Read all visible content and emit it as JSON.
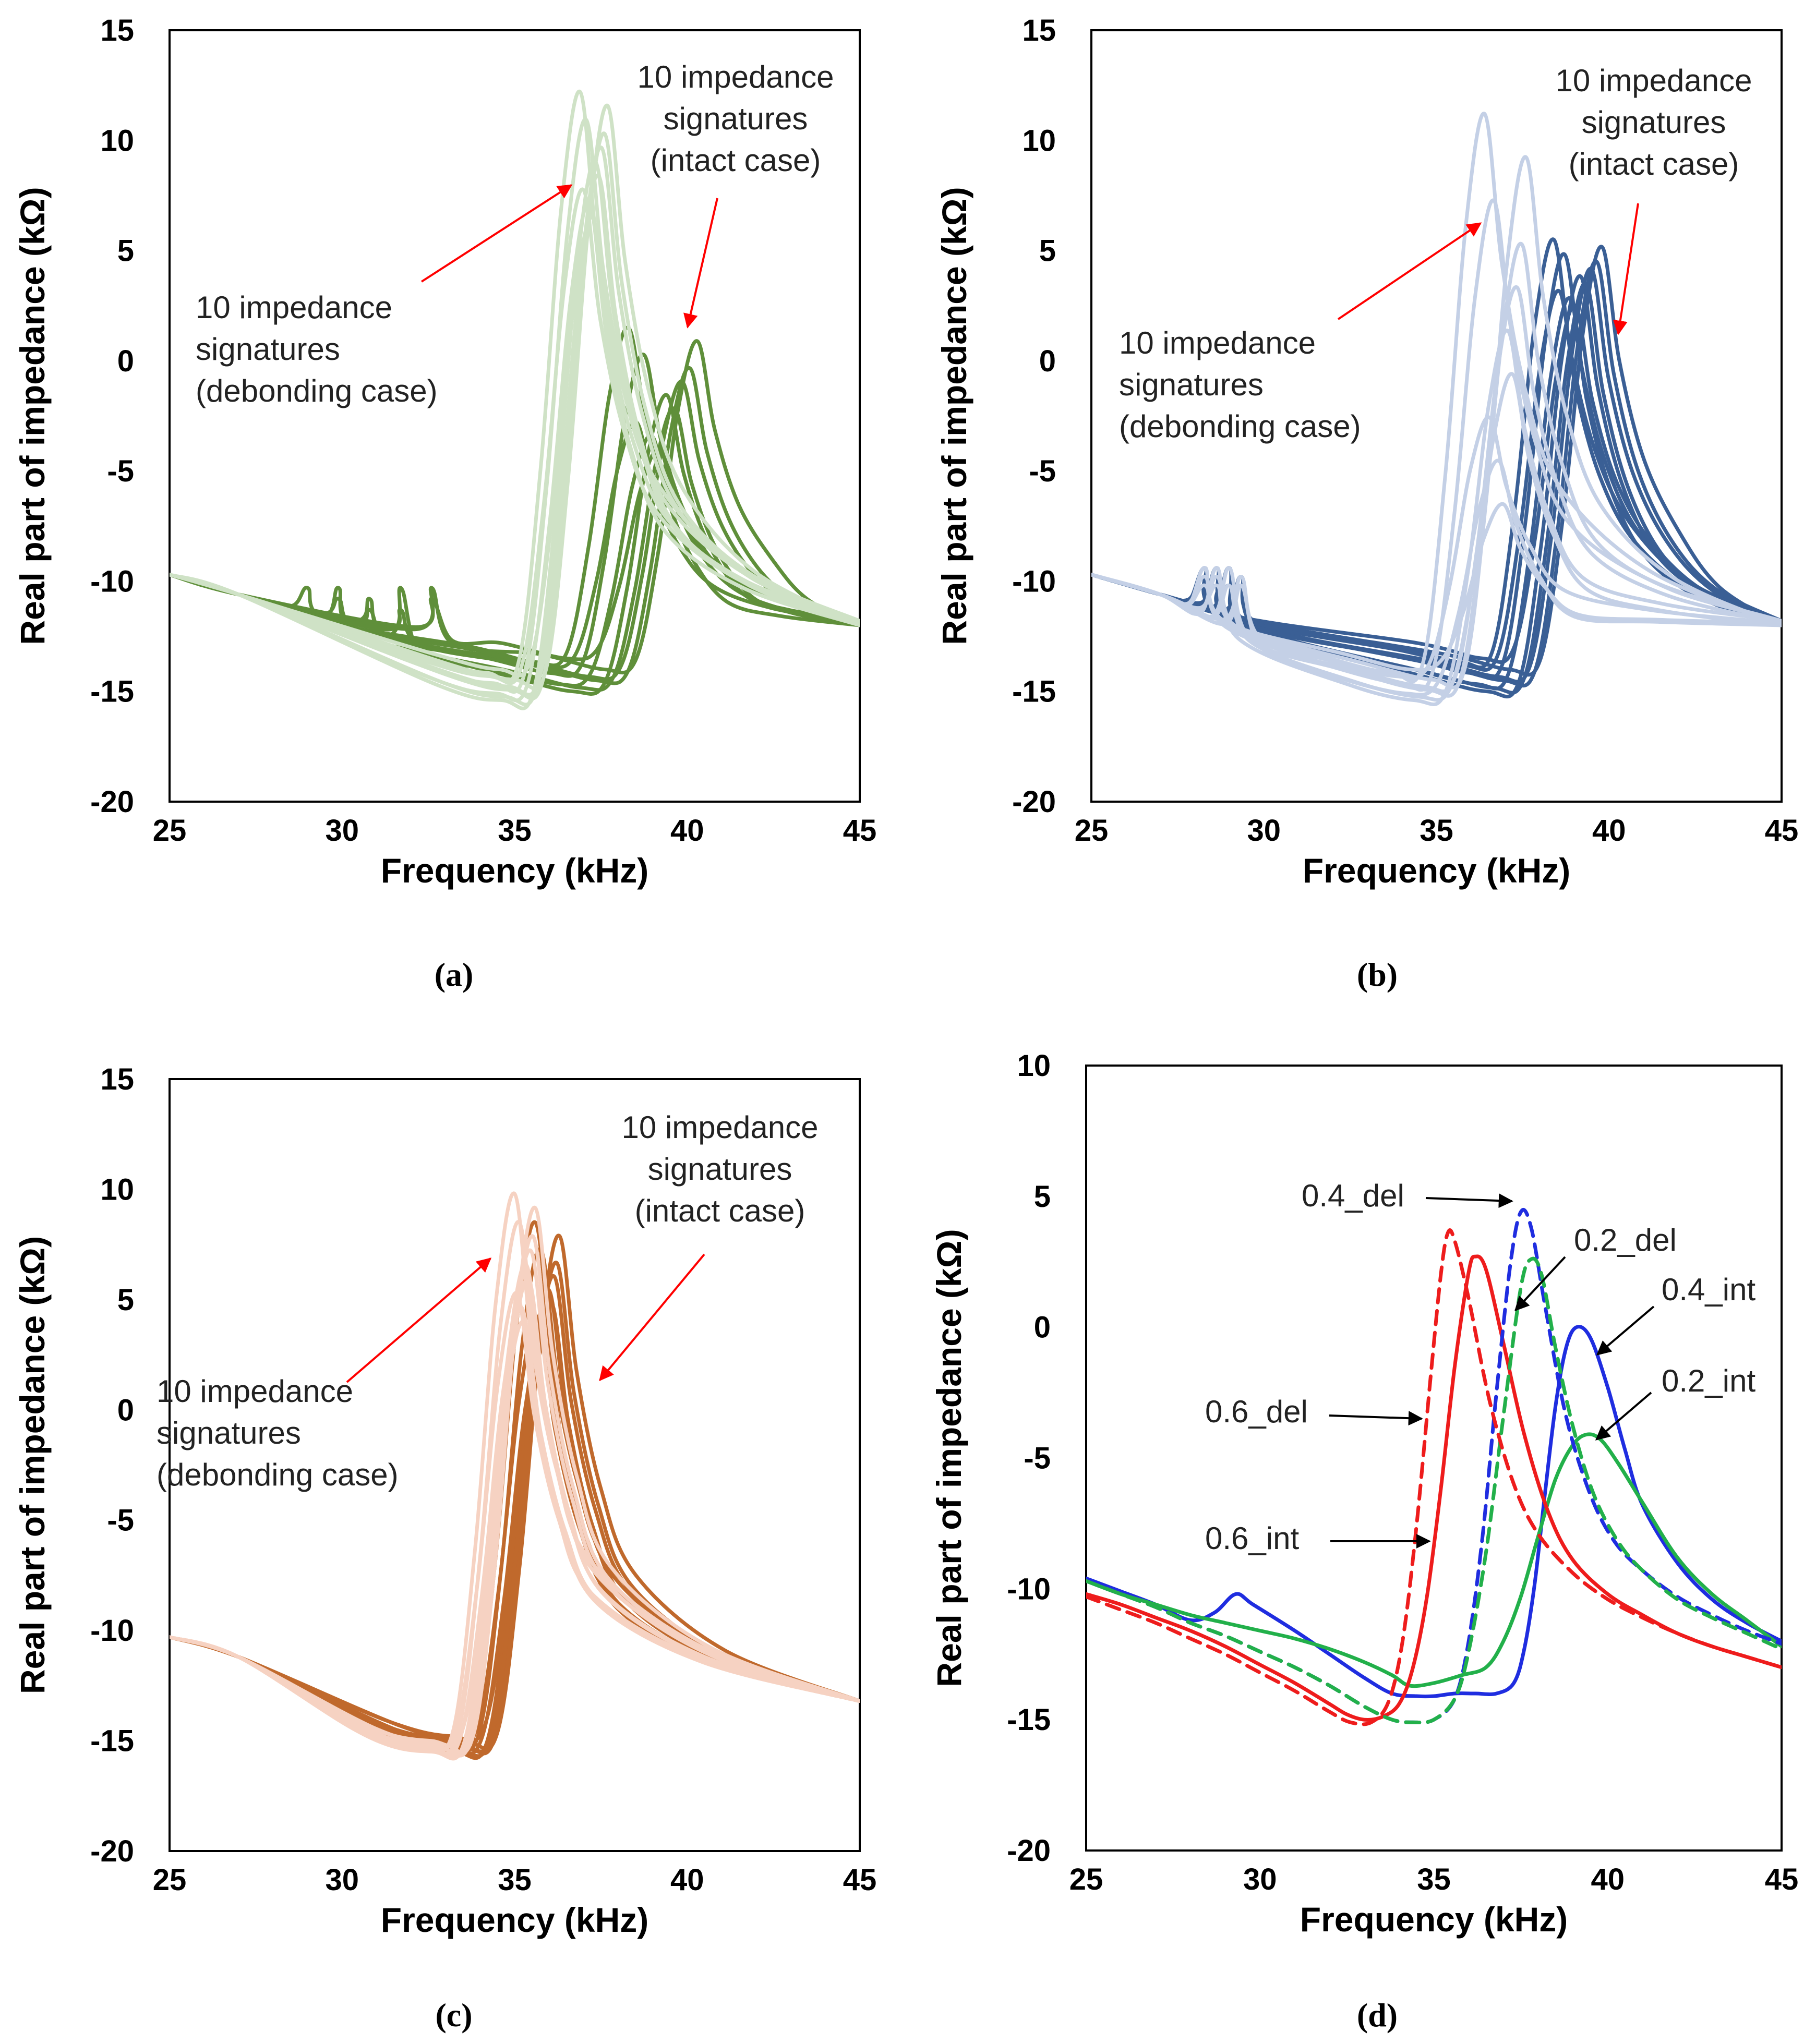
{
  "chart_data": [
    {
      "panel": "a",
      "caption": "(a)",
      "type": "line",
      "title": "",
      "xlabel": "Frequency (kHz)",
      "ylabel": "Real part of impedance (kΩ)",
      "xlim": [
        25,
        45
      ],
      "ylim": [
        -20,
        15
      ],
      "xticks": [
        "25",
        "30",
        "35",
        "40",
        "45"
      ],
      "yticks": [
        "15",
        "10",
        "5",
        "0",
        "-5",
        "-10",
        "-15",
        "-20"
      ],
      "colors": {
        "intact": "#5f8f3a",
        "debonding": "#cfe2c6",
        "arrow": "#ff0000"
      },
      "annotations": [
        {
          "lines": [
            "10 impedance",
            "signatures",
            "(intact case)"
          ]
        },
        {
          "lines": [
            "10 impedance",
            "signatures",
            "(debonding case)"
          ]
        }
      ],
      "series": [
        {
          "name": "intact",
          "count": 10,
          "peak_freq_range": [
            38.3,
            40.3
          ],
          "peak_value_range": [
            -4,
            1.5
          ],
          "min_value_range": [
            -15,
            -13.5
          ]
        },
        {
          "name": "debonding",
          "count": 10,
          "peak_freq_range": [
            36.9,
            37.7
          ],
          "peak_value_range": [
            6.5,
            12.2
          ],
          "min_value_range": [
            -15.4,
            -14
          ]
        }
      ]
    },
    {
      "panel": "b",
      "caption": "(b)",
      "type": "line",
      "title": "",
      "xlabel": "Frequency (kHz)",
      "ylabel": "Real part of impedance (kΩ)",
      "xlim": [
        25,
        45
      ],
      "ylim": [
        -20,
        15
      ],
      "xticks": [
        "25",
        "30",
        "35",
        "40",
        "45"
      ],
      "yticks": [
        "15",
        "10",
        "5",
        "0",
        "-5",
        "-10",
        "-15",
        "-20"
      ],
      "colors": {
        "intact": "#3a5f95",
        "debonding": "#c4d0e6",
        "arrow": "#ff0000"
      },
      "annotations": [
        {
          "lines": [
            "10 impedance",
            "signatures",
            "(intact case)"
          ]
        },
        {
          "lines": [
            "10 impedance",
            "signatures",
            "(debonding case)"
          ]
        }
      ],
      "series": [
        {
          "name": "intact",
          "count": 10,
          "peak_freq_range": [
            38.4,
            39.8
          ],
          "peak_value_range": [
            2.5,
            5.5
          ],
          "min_value_range": [
            -15,
            -13.5
          ]
        },
        {
          "name": "debonding",
          "count": 10,
          "peak_freq_range": [
            36.4,
            37.6
          ],
          "peak_value_range": [
            -6.5,
            11.2
          ],
          "min_value_range": [
            -15.4,
            -14
          ]
        }
      ]
    },
    {
      "panel": "c",
      "caption": "(c)",
      "type": "line",
      "title": "",
      "xlabel": "Frequency (kHz)",
      "ylabel": "Real part of impedance (kΩ)",
      "xlim": [
        25,
        45
      ],
      "ylim": [
        -20,
        15
      ],
      "xticks": [
        "25",
        "30",
        "35",
        "40",
        "45"
      ],
      "yticks": [
        "15",
        "10",
        "5",
        "0",
        "-5",
        "-10",
        "-15",
        "-20"
      ],
      "colors": {
        "intact": "#c0692c",
        "debonding": "#f6d2c2",
        "arrow": "#ff0000"
      },
      "annotations": [
        {
          "lines": [
            "10 impedance",
            "signatures",
            "(intact case)"
          ]
        },
        {
          "lines": [
            "10 impedance",
            "signatures",
            "(debonding case)"
          ]
        }
      ],
      "series": [
        {
          "name": "intact",
          "count": 10,
          "peak_freq_range": [
            35.6,
            36.3
          ],
          "peak_value_range": [
            3,
            8.5
          ],
          "min_value_range": [
            -15.5,
            -14.8
          ]
        },
        {
          "name": "debonding",
          "count": 10,
          "peak_freq_range": [
            35,
            35.6
          ],
          "peak_value_range": [
            4,
            9.8
          ],
          "min_value_range": [
            -15.5,
            -15
          ]
        }
      ]
    },
    {
      "panel": "d",
      "caption": "(d)",
      "type": "line",
      "title": "",
      "xlabel": "Frequency (kHz)",
      "ylabel": "Real part of impedance (kΩ)",
      "xlim": [
        25,
        45
      ],
      "ylim": [
        -20,
        10
      ],
      "xticks": [
        "25",
        "30",
        "35",
        "40",
        "45"
      ],
      "yticks": [
        "10",
        "5",
        "0",
        "-5",
        "-10",
        "-15",
        "-20"
      ],
      "series": [
        {
          "name": "0.4_int",
          "color": "#1f2de0",
          "style": "solid",
          "points": [
            [
              25,
              -9.6
            ],
            [
              26,
              -10.1
            ],
            [
              27,
              -10.6
            ],
            [
              28,
              -11.2
            ],
            [
              28.7,
              -10.9
            ],
            [
              29.3,
              -10.2
            ],
            [
              29.8,
              -10.6
            ],
            [
              31,
              -11.6
            ],
            [
              32,
              -12.5
            ],
            [
              33,
              -13.4
            ],
            [
              33.8,
              -14
            ],
            [
              34.5,
              -14.1
            ],
            [
              35,
              -14.1
            ],
            [
              35.6,
              -14
            ],
            [
              36.2,
              -14
            ],
            [
              36.8,
              -14
            ],
            [
              37.3,
              -13.6
            ],
            [
              37.6,
              -12.3
            ],
            [
              37.9,
              -9.8
            ],
            [
              38.2,
              -6.3
            ],
            [
              38.5,
              -3
            ],
            [
              38.8,
              -0.8
            ],
            [
              39.1,
              0
            ],
            [
              39.5,
              -0.4
            ],
            [
              40,
              -2.3
            ],
            [
              40.5,
              -4.7
            ],
            [
              41,
              -6.8
            ],
            [
              42,
              -9
            ],
            [
              43,
              -10.4
            ],
            [
              44,
              -11.3
            ],
            [
              45,
              -12
            ]
          ]
        },
        {
          "name": "0.2_int",
          "color": "#22b04a",
          "style": "solid",
          "points": [
            [
              25,
              -9.7
            ],
            [
              26,
              -10.2
            ],
            [
              27,
              -10.6
            ],
            [
              28,
              -11
            ],
            [
              29,
              -11.3
            ],
            [
              30,
              -11.6
            ],
            [
              31,
              -11.9
            ],
            [
              32,
              -12.3
            ],
            [
              33,
              -12.8
            ],
            [
              33.8,
              -13.3
            ],
            [
              34.3,
              -13.7
            ],
            [
              35,
              -13.6
            ],
            [
              35.8,
              -13.3
            ],
            [
              36.5,
              -13
            ],
            [
              37,
              -12
            ],
            [
              37.5,
              -10.3
            ],
            [
              38,
              -8
            ],
            [
              38.5,
              -5.8
            ],
            [
              39,
              -4.5
            ],
            [
              39.4,
              -4.1
            ],
            [
              39.8,
              -4.3
            ],
            [
              40.3,
              -5.2
            ],
            [
              41,
              -6.7
            ],
            [
              42,
              -8.8
            ],
            [
              43,
              -10.2
            ],
            [
              44,
              -11.2
            ],
            [
              45,
              -12.2
            ]
          ]
        },
        {
          "name": "0.6_int",
          "color": "#ee1c1c",
          "style": "solid",
          "points": [
            [
              25,
              -10.2
            ],
            [
              26,
              -10.6
            ],
            [
              27,
              -11.1
            ],
            [
              28,
              -11.6
            ],
            [
              29,
              -12.2
            ],
            [
              30,
              -12.9
            ],
            [
              31,
              -13.6
            ],
            [
              32,
              -14.4
            ],
            [
              32.5,
              -14.8
            ],
            [
              33,
              -15
            ],
            [
              33.5,
              -14.9
            ],
            [
              34,
              -14.4
            ],
            [
              34.4,
              -13
            ],
            [
              34.8,
              -10.3
            ],
            [
              35.2,
              -6.2
            ],
            [
              35.6,
              -1.5
            ],
            [
              36,
              2.1
            ],
            [
              36.2,
              2.7
            ],
            [
              36.5,
              2.2
            ],
            [
              37,
              -0.6
            ],
            [
              37.6,
              -4.1
            ],
            [
              38.3,
              -7.1
            ],
            [
              39,
              -8.9
            ],
            [
              40,
              -10.2
            ],
            [
              41,
              -11
            ],
            [
              42,
              -11.7
            ],
            [
              43,
              -12.2
            ],
            [
              44,
              -12.6
            ],
            [
              45,
              -13
            ]
          ]
        },
        {
          "name": "0.4_del",
          "color": "#1f2de0",
          "style": "dashed",
          "points": [
            [
              25,
              -9.7
            ],
            [
              26,
              -10.2
            ],
            [
              27,
              -10.7
            ],
            [
              28,
              -11.3
            ],
            [
              29,
              -11.8
            ],
            [
              30,
              -12.4
            ],
            [
              31,
              -13
            ],
            [
              32,
              -13.7
            ],
            [
              33,
              -14.5
            ],
            [
              33.8,
              -15
            ],
            [
              34.4,
              -15.1
            ],
            [
              35,
              -15
            ],
            [
              35.6,
              -14.2
            ],
            [
              36,
              -12
            ],
            [
              36.4,
              -8
            ],
            [
              36.8,
              -2.5
            ],
            [
              37.2,
              2.4
            ],
            [
              37.5,
              4.4
            ],
            [
              37.8,
              3.8
            ],
            [
              38.2,
              0.8
            ],
            [
              38.8,
              -3.4
            ],
            [
              39.5,
              -6.4
            ],
            [
              40.2,
              -8.2
            ],
            [
              41,
              -9.3
            ],
            [
              42,
              -10.3
            ],
            [
              43,
              -11
            ],
            [
              44,
              -11.6
            ],
            [
              45,
              -12.1
            ]
          ]
        },
        {
          "name": "0.2_del",
          "color": "#22b04a",
          "style": "dashed",
          "points": [
            [
              25,
              -9.7
            ],
            [
              26,
              -10.2
            ],
            [
              27,
              -10.7
            ],
            [
              28,
              -11.3
            ],
            [
              29,
              -11.8
            ],
            [
              30,
              -12.4
            ],
            [
              31,
              -13
            ],
            [
              32,
              -13.7
            ],
            [
              33,
              -14.5
            ],
            [
              33.8,
              -15
            ],
            [
              34.4,
              -15.1
            ],
            [
              35,
              -15
            ],
            [
              35.6,
              -14.2
            ],
            [
              36,
              -12.4
            ],
            [
              36.5,
              -8.6
            ],
            [
              37,
              -3.4
            ],
            [
              37.5,
              1.5
            ],
            [
              37.8,
              2.6
            ],
            [
              38.1,
              2
            ],
            [
              38.5,
              -0.8
            ],
            [
              39,
              -3.8
            ],
            [
              39.6,
              -6.4
            ],
            [
              40.3,
              -8.2
            ],
            [
              41,
              -9.3
            ],
            [
              42,
              -10.4
            ],
            [
              43,
              -11.1
            ],
            [
              44,
              -11.7
            ],
            [
              45,
              -12.3
            ]
          ]
        },
        {
          "name": "0.6_del",
          "color": "#ee1c1c",
          "style": "dashed",
          "points": [
            [
              25,
              -10.3
            ],
            [
              26,
              -10.8
            ],
            [
              27,
              -11.3
            ],
            [
              28,
              -11.9
            ],
            [
              29,
              -12.5
            ],
            [
              30,
              -13.2
            ],
            [
              31,
              -13.9
            ],
            [
              32,
              -14.7
            ],
            [
              32.6,
              -15.1
            ],
            [
              33.2,
              -15.1
            ],
            [
              33.7,
              -14.3
            ],
            [
              34.1,
              -12
            ],
            [
              34.5,
              -7.6
            ],
            [
              34.9,
              -2
            ],
            [
              35.2,
              2
            ],
            [
              35.4,
              3.6
            ],
            [
              35.6,
              3.3
            ],
            [
              36,
              1.1
            ],
            [
              36.6,
              -2.8
            ],
            [
              37.3,
              -6
            ],
            [
              38,
              -7.9
            ],
            [
              39,
              -9.4
            ],
            [
              40,
              -10.4
            ],
            [
              41,
              -11.1
            ],
            [
              42,
              -11.7
            ],
            [
              43,
              -12.2
            ],
            [
              44,
              -12.6
            ],
            [
              45,
              -13
            ]
          ]
        }
      ],
      "labels": [
        "0.4_del",
        "0.2_del",
        "0.4_int",
        "0.2_int",
        "0.6_del",
        "0.6_int"
      ]
    }
  ]
}
